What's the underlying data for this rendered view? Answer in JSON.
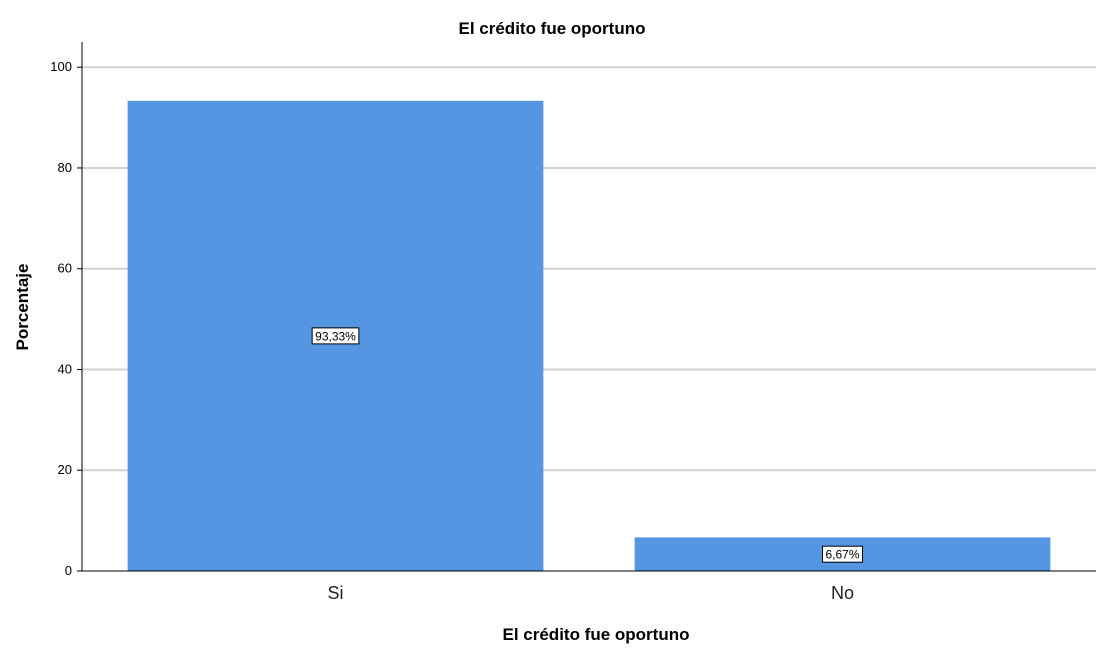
{
  "chart_data": {
    "type": "bar",
    "title": "El crédito fue oportuno",
    "xlabel": "El crédito fue oportuno",
    "ylabel": "Porcentaje",
    "categories": [
      "Si",
      "No"
    ],
    "values": [
      93.33,
      6.67
    ],
    "data_labels": [
      "93,33%",
      "6,67%"
    ],
    "yticks": [
      "0",
      "20",
      "40",
      "60",
      "80",
      "100"
    ],
    "ylim": [
      0,
      105
    ],
    "grid": true,
    "bar_color": "#5596e3",
    "grid_color": "#d2d2d2"
  }
}
